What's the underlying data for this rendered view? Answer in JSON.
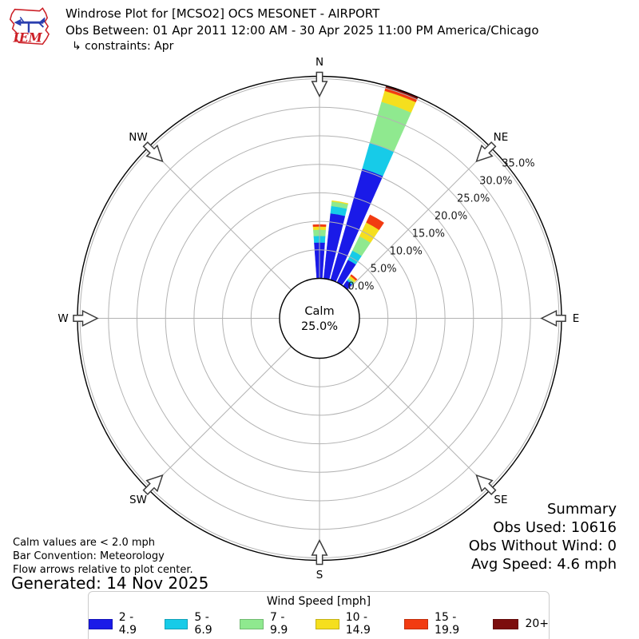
{
  "header": {
    "logo_text": "IEM",
    "title": "Windrose Plot for [MCSO2] OCS MESONET - AIRPORT",
    "subtitle": "Obs Between: 01 Apr 2011 12:00 AM - 30 Apr 2025 11:00 PM America/Chicago",
    "constraints": "↳ constraints: Apr"
  },
  "chart_data": {
    "type": "windrose",
    "title": "Windrose Plot for [MCSO2] OCS MESONET - AIRPORT",
    "units": "mph",
    "axis_max_pct": 35,
    "ring_step_pct": 5,
    "radial_ticks": [
      "0.0%",
      "5.0%",
      "10.0%",
      "15.0%",
      "20.0%",
      "25.0%",
      "30.0%",
      "35.0%"
    ],
    "compass": [
      {
        "label": "N",
        "deg": 0
      },
      {
        "label": "NE",
        "deg": 45
      },
      {
        "label": "E",
        "deg": 90
      },
      {
        "label": "SE",
        "deg": 135
      },
      {
        "label": "S",
        "deg": 180
      },
      {
        "label": "SW",
        "deg": 225
      },
      {
        "label": "W",
        "deg": 270
      },
      {
        "label": "NW",
        "deg": 315
      }
    ],
    "calm": {
      "label": "Calm",
      "value": "25.0%"
    },
    "bar_width_deg": 8,
    "speed_bins": [
      {
        "label": "2 - 4.9",
        "color": "#1a1ae8"
      },
      {
        "label": "5 - 6.9",
        "color": "#17cbe8"
      },
      {
        "label": "7 - 9.9",
        "color": "#8fe98f"
      },
      {
        "label": "10 - 14.9",
        "color": "#f5df1e"
      },
      {
        "label": "15 - 19.9",
        "color": "#f23b11"
      },
      {
        "label": "20+",
        "color": "#7c0d0d"
      }
    ],
    "directions": [
      {
        "azimuth_deg": 0,
        "values": [
          6.3,
          1.15,
          1.1,
          0.55,
          0.35,
          0
        ]
      },
      {
        "azimuth_deg": 10,
        "values": [
          11.5,
          1.3,
          0.8,
          0.15,
          0,
          0
        ]
      },
      {
        "azimuth_deg": 20,
        "values": [
          20.3,
          4.7,
          7.5,
          2.0,
          0.55,
          0.45
        ]
      },
      {
        "azimuth_deg": 30,
        "values": [
          4.4,
          1.8,
          2.8,
          2.7,
          1.5,
          0
        ]
      },
      {
        "azimuth_deg": 40,
        "values": [
          1.2,
          0.3,
          0.3,
          0.4,
          0.3,
          0
        ]
      }
    ]
  },
  "legend": {
    "title": "Wind Speed [mph]"
  },
  "summary": {
    "title": "Summary",
    "lines": [
      "Obs Used: 10616",
      "Obs Without Wind: 0",
      "Avg Speed: 4.6 mph"
    ]
  },
  "notes": [
    "Calm values are < 2.0 mph",
    "Bar Convention: Meteorology",
    "Flow arrows relative to plot center."
  ],
  "generated": "Generated: 14 Nov 2025"
}
